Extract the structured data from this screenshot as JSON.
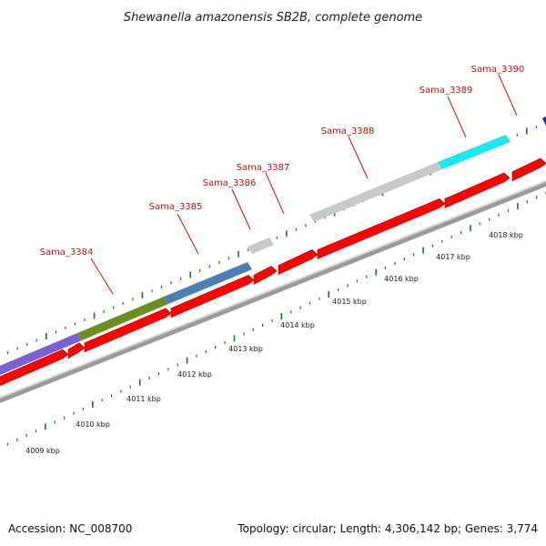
{
  "title": "Shewanella amazonensis SB2B, complete genome",
  "footer": {
    "accession": "Accession: NC_008700",
    "summary": "Topology: circular; Length: 4,306,142 bp; Genes: 3,774"
  },
  "genes": [
    {
      "name": "Sama_3384",
      "color": "#2a8a9a"
    },
    {
      "name": "Sama_3385",
      "color": "#4a7fb5"
    },
    {
      "name": "Sama_3386",
      "color": "#c8c8c8"
    },
    {
      "name": "Sama_3387",
      "color": "#c8c8c8"
    },
    {
      "name": "Sama_3388",
      "color": "#c8c8c8"
    },
    {
      "name": "Sama_3389",
      "color": "#22e6ef"
    },
    {
      "name": "Sama_3390",
      "color": "#1a2a9a"
    }
  ],
  "kbp_ticks": [
    "4009 kbp",
    "4010 kbp",
    "4011 kbp",
    "4012 kbp",
    "4013 kbp",
    "4014 kbp",
    "4015 kbp",
    "4016 kbp",
    "4017 kbp",
    "4018 kbp"
  ],
  "colors": {
    "cds": "#ff0000",
    "backbone": "#888888",
    "tick": "#1a7a1a",
    "label": "#cc1111"
  }
}
